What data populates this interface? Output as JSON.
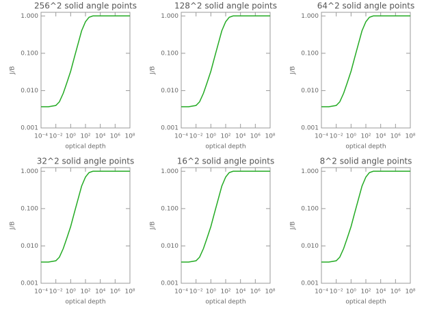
{
  "chart_data": [
    {
      "type": "line",
      "title": "256^2 solid angle points",
      "x_label": "optical depth",
      "y_label": "J/B",
      "xlog": true,
      "ylog": true,
      "x": [
        0.0001,
        0.001,
        0.01,
        0.03,
        0.1,
        0.3,
        1,
        3,
        10,
        30,
        100,
        300,
        1000,
        3000,
        10000,
        100000,
        1000000,
        10000000,
        100000000
      ],
      "series": [
        {
          "color": "#22aa22",
          "values": [
            0.0037,
            0.0037,
            0.004,
            0.005,
            0.0085,
            0.016,
            0.033,
            0.075,
            0.18,
            0.4,
            0.7,
            0.92,
            1.0,
            1.0,
            1.0,
            1.0,
            1.0,
            1.0,
            1.0
          ]
        }
      ],
      "xlim": [
        0.0001,
        100000000
      ],
      "ylim": [
        0.001,
        1.25
      ],
      "xticks": [
        {
          "value": 0.0001,
          "label": "10⁻⁴"
        },
        {
          "value": 0.01,
          "label": "10⁻²"
        },
        {
          "value": 1,
          "label": "10⁰"
        },
        {
          "value": 100,
          "label": "10²"
        },
        {
          "value": 10000,
          "label": "10⁴"
        },
        {
          "value": 1000000,
          "label": "10⁶"
        },
        {
          "value": 100000000,
          "label": "10⁸"
        }
      ],
      "yticks": [
        0.001,
        {
          "value": 0.01,
          "label": "0.010"
        },
        {
          "value": 0.1,
          "label": "0.100"
        },
        {
          "value": 1,
          "label": "1.000"
        }
      ]
    },
    {
      "type": "line",
      "title": "128^2 solid angle points",
      "x_label": "optical depth",
      "y_label": "J/B",
      "xlog": true,
      "ylog": true,
      "x": [
        0.0001,
        0.001,
        0.01,
        0.03,
        0.1,
        0.3,
        1,
        3,
        10,
        30,
        100,
        300,
        1000,
        3000,
        10000,
        100000,
        1000000,
        10000000,
        100000000
      ],
      "series": [
        {
          "color": "#22aa22",
          "values": [
            0.0037,
            0.0037,
            0.004,
            0.005,
            0.0085,
            0.016,
            0.033,
            0.075,
            0.18,
            0.4,
            0.7,
            0.92,
            1.0,
            1.0,
            1.0,
            1.0,
            1.0,
            1.0,
            1.0
          ]
        }
      ],
      "xlim": [
        0.0001,
        100000000
      ],
      "ylim": [
        0.001,
        1.25
      ],
      "xticks": [
        {
          "value": 0.0001,
          "label": "10⁻⁴"
        },
        {
          "value": 0.01,
          "label": "10⁻²"
        },
        {
          "value": 1,
          "label": "10⁰"
        },
        {
          "value": 100,
          "label": "10²"
        },
        {
          "value": 10000,
          "label": "10⁴"
        },
        {
          "value": 1000000,
          "label": "10⁶"
        },
        {
          "value": 100000000,
          "label": "10⁸"
        }
      ],
      "yticks": [
        0.001,
        {
          "value": 0.01,
          "label": "0.010"
        },
        {
          "value": 0.1,
          "label": "0.100"
        },
        {
          "value": 1,
          "label": "1.000"
        }
      ]
    },
    {
      "type": "line",
      "title": "64^2 solid angle points",
      "x_label": "optical depth",
      "y_label": "J/B",
      "xlog": true,
      "ylog": true,
      "x": [
        0.0001,
        0.001,
        0.01,
        0.03,
        0.1,
        0.3,
        1,
        3,
        10,
        30,
        100,
        300,
        1000,
        3000,
        10000,
        100000,
        1000000,
        10000000,
        100000000
      ],
      "series": [
        {
          "color": "#22aa22",
          "values": [
            0.0037,
            0.0037,
            0.004,
            0.005,
            0.0085,
            0.016,
            0.033,
            0.075,
            0.18,
            0.4,
            0.7,
            0.92,
            1.0,
            1.0,
            1.0,
            1.0,
            1.0,
            1.0,
            1.0
          ]
        }
      ],
      "xlim": [
        0.0001,
        100000000
      ],
      "ylim": [
        0.001,
        1.25
      ],
      "xticks": [
        {
          "value": 0.0001,
          "label": "10⁻⁴"
        },
        {
          "value": 0.01,
          "label": "10⁻²"
        },
        {
          "value": 1,
          "label": "10⁰"
        },
        {
          "value": 100,
          "label": "10²"
        },
        {
          "value": 10000,
          "label": "10⁴"
        },
        {
          "value": 1000000,
          "label": "10⁶"
        },
        {
          "value": 100000000,
          "label": "10⁸"
        }
      ],
      "yticks": [
        0.001,
        {
          "value": 0.01,
          "label": "0.010"
        },
        {
          "value": 0.1,
          "label": "0.100"
        },
        {
          "value": 1,
          "label": "1.000"
        }
      ]
    },
    {
      "type": "line",
      "title": "32^2 solid angle points",
      "x_label": "optical depth",
      "y_label": "J/B",
      "xlog": true,
      "ylog": true,
      "x": [
        0.0001,
        0.001,
        0.01,
        0.03,
        0.1,
        0.3,
        1,
        3,
        10,
        30,
        100,
        300,
        1000,
        3000,
        10000,
        100000,
        1000000,
        10000000,
        100000000
      ],
      "series": [
        {
          "color": "#22aa22",
          "values": [
            0.0037,
            0.0037,
            0.004,
            0.005,
            0.0085,
            0.016,
            0.033,
            0.075,
            0.18,
            0.4,
            0.7,
            0.92,
            1.0,
            1.0,
            1.0,
            1.0,
            1.0,
            1.0,
            1.0
          ]
        }
      ],
      "xlim": [
        0.0001,
        100000000
      ],
      "ylim": [
        0.001,
        1.25
      ],
      "xticks": [
        {
          "value": 0.0001,
          "label": "10⁻⁴"
        },
        {
          "value": 0.01,
          "label": "10⁻²"
        },
        {
          "value": 1,
          "label": "10⁰"
        },
        {
          "value": 100,
          "label": "10²"
        },
        {
          "value": 10000,
          "label": "10⁴"
        },
        {
          "value": 1000000,
          "label": "10⁶"
        },
        {
          "value": 100000000,
          "label": "10⁸"
        }
      ],
      "yticks": [
        0.001,
        {
          "value": 0.01,
          "label": "0.010"
        },
        {
          "value": 0.1,
          "label": "0.100"
        },
        {
          "value": 1,
          "label": "1.000"
        }
      ]
    },
    {
      "type": "line",
      "title": "16^2 solid angle points",
      "x_label": "optical depth",
      "y_label": "J/B",
      "xlog": true,
      "ylog": true,
      "x": [
        0.0001,
        0.001,
        0.01,
        0.03,
        0.1,
        0.3,
        1,
        3,
        10,
        30,
        100,
        300,
        1000,
        3000,
        10000,
        100000,
        1000000,
        10000000,
        100000000
      ],
      "series": [
        {
          "color": "#22aa22",
          "values": [
            0.0037,
            0.0037,
            0.004,
            0.005,
            0.0085,
            0.016,
            0.033,
            0.075,
            0.18,
            0.4,
            0.7,
            0.92,
            1.0,
            1.0,
            1.0,
            1.0,
            1.0,
            1.0,
            1.0
          ]
        }
      ],
      "xlim": [
        0.0001,
        100000000
      ],
      "ylim": [
        0.001,
        1.25
      ],
      "xticks": [
        {
          "value": 0.0001,
          "label": "10⁻⁴"
        },
        {
          "value": 0.01,
          "label": "10⁻²"
        },
        {
          "value": 1,
          "label": "10⁰"
        },
        {
          "value": 100,
          "label": "10²"
        },
        {
          "value": 10000,
          "label": "10⁴"
        },
        {
          "value": 1000000,
          "label": "10⁶"
        },
        {
          "value": 100000000,
          "label": "10⁸"
        }
      ],
      "yticks": [
        0.001,
        {
          "value": 0.01,
          "label": "0.010"
        },
        {
          "value": 0.1,
          "label": "0.100"
        },
        {
          "value": 1,
          "label": "1.000"
        }
      ]
    },
    {
      "type": "line",
      "title": "8^2 solid angle points",
      "x_label": "optical depth",
      "y_label": "J/B",
      "xlog": true,
      "ylog": true,
      "x": [
        0.0001,
        0.001,
        0.01,
        0.03,
        0.1,
        0.3,
        1,
        3,
        10,
        30,
        100,
        300,
        1000,
        3000,
        10000,
        100000,
        1000000,
        10000000,
        100000000
      ],
      "series": [
        {
          "color": "#22aa22",
          "values": [
            0.0037,
            0.0037,
            0.004,
            0.005,
            0.0085,
            0.016,
            0.033,
            0.075,
            0.18,
            0.4,
            0.7,
            0.92,
            1.0,
            1.0,
            1.0,
            1.0,
            1.0,
            1.0,
            1.0
          ]
        }
      ],
      "xlim": [
        0.0001,
        100000000
      ],
      "ylim": [
        0.001,
        1.25
      ],
      "xticks": [
        {
          "value": 0.0001,
          "label": "10⁻⁴"
        },
        {
          "value": 0.01,
          "label": "10⁻²"
        },
        {
          "value": 1,
          "label": "10⁰"
        },
        {
          "value": 100,
          "label": "10²"
        },
        {
          "value": 10000,
          "label": "10⁴"
        },
        {
          "value": 1000000,
          "label": "10⁶"
        },
        {
          "value": 100000000,
          "label": "10⁸"
        }
      ],
      "yticks": [
        0.001,
        {
          "value": 0.01,
          "label": "0.010"
        },
        {
          "value": 0.1,
          "label": "0.100"
        },
        {
          "value": 1,
          "label": "1.000"
        }
      ]
    }
  ]
}
